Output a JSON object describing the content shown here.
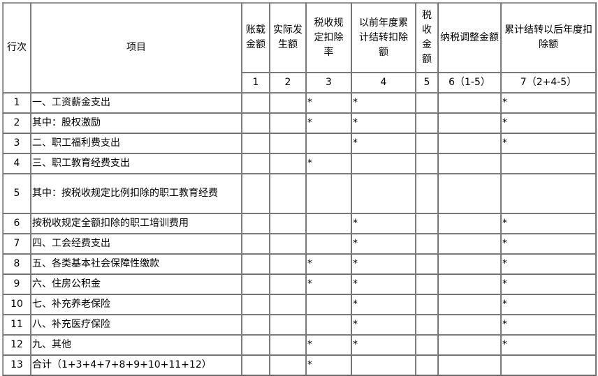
{
  "header": {
    "row_no": "行次",
    "item": "项目",
    "columns": [
      "账载金额",
      "实际发生额",
      "税收规定扣除率",
      "以前年度累计结转扣除额",
      "税收金额",
      "纳税调整金额",
      "累计结转以后年度扣除额"
    ],
    "column_numbers": [
      "1",
      "2",
      "3",
      "4",
      "5",
      "6（1-5）",
      "7（2+4-5）"
    ]
  },
  "rows": [
    {
      "no": "1",
      "item": "一、工资薪金支出",
      "cells": [
        "",
        "",
        "*",
        "*",
        "",
        "",
        "*"
      ]
    },
    {
      "no": "2",
      "item": "其中：股权激励",
      "cells": [
        "",
        "",
        "*",
        "*",
        "",
        "",
        "*"
      ]
    },
    {
      "no": "3",
      "item": "二、职工福利费支出",
      "cells": [
        "",
        "",
        "",
        "*",
        "",
        "",
        "*"
      ]
    },
    {
      "no": "4",
      "item": "三、职工教育经费支出",
      "cells": [
        "",
        "",
        "*",
        "",
        "",
        "",
        ""
      ]
    },
    {
      "no": "5",
      "item": "其中：按税收规定比例扣除的职工教育经费",
      "cells": [
        "",
        "",
        "",
        "",
        "",
        "",
        ""
      ]
    },
    {
      "no": "6",
      "item": "按税收规定全额扣除的职工培训费用",
      "cells": [
        "",
        "",
        "",
        "*",
        "",
        "",
        "*"
      ]
    },
    {
      "no": "7",
      "item": "四、工会经费支出",
      "cells": [
        "",
        "",
        "",
        "*",
        "",
        "",
        "*"
      ]
    },
    {
      "no": "8",
      "item": "五、各类基本社会保障性缴款",
      "cells": [
        "",
        "",
        "*",
        "*",
        "",
        "",
        "*"
      ]
    },
    {
      "no": "9",
      "item": "六、住房公积金",
      "cells": [
        "",
        "",
        "*",
        "*",
        "",
        "",
        "*"
      ]
    },
    {
      "no": "10",
      "item": "七、补充养老保险",
      "cells": [
        "",
        "",
        "",
        "*",
        "",
        "",
        "*"
      ]
    },
    {
      "no": "11",
      "item": "八、补充医疗保险",
      "cells": [
        "",
        "",
        "",
        "*",
        "",
        "",
        "*"
      ]
    },
    {
      "no": "12",
      "item": "九、其他",
      "cells": [
        "",
        "",
        "*",
        "*",
        "",
        "",
        "*"
      ]
    },
    {
      "no": "13",
      "item": "合计（1+3+4+7+8+9+10+11+12）",
      "cells": [
        "",
        "",
        "*",
        "",
        "",
        "",
        ""
      ]
    }
  ]
}
